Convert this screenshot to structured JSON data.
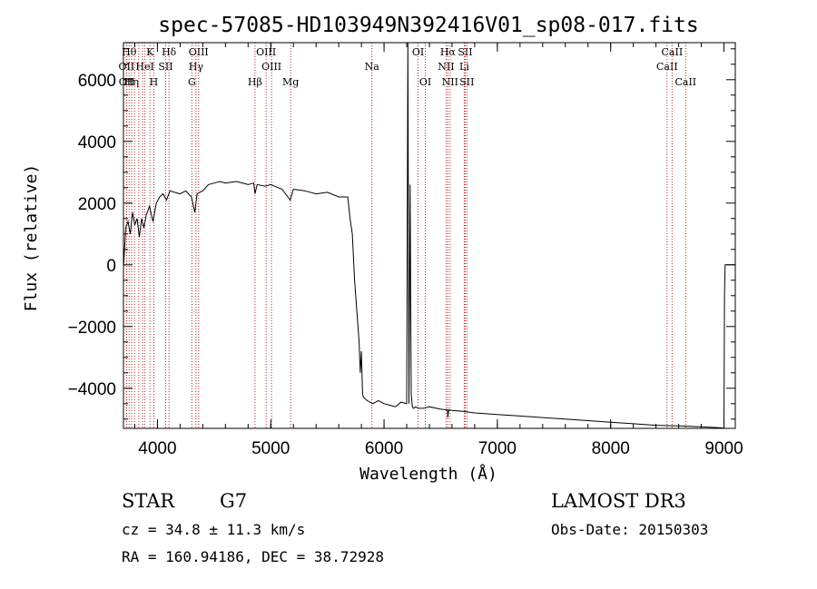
{
  "chart_data": {
    "type": "line",
    "title": "spec-57085-HD103949N392416V01_sp08-017.fits",
    "xlabel": "Wavelength (Å)",
    "ylabel": "Flux (relative)",
    "xlim": [
      3700,
      9100
    ],
    "ylim": [
      -5300,
      7200
    ],
    "x_ticks": [
      4000,
      5000,
      6000,
      7000,
      8000,
      9000
    ],
    "x_tick_labels": [
      "4000",
      "5000",
      "6000",
      "7000",
      "8000",
      "9000"
    ],
    "y_ticks": [
      -4000,
      -2000,
      0,
      2000,
      4000,
      6000
    ],
    "y_tick_labels": [
      "−4000",
      "−2000",
      "0",
      "2000",
      "4000",
      "6000"
    ],
    "series": [
      {
        "name": "flux",
        "x": [
          3700,
          3720,
          3740,
          3760,
          3780,
          3800,
          3820,
          3840,
          3860,
          3880,
          3900,
          3930,
          3960,
          3990,
          4020,
          4050,
          4080,
          4110,
          4150,
          4200,
          4250,
          4300,
          4330,
          4350,
          4400,
          4450,
          4500,
          4550,
          4600,
          4700,
          4800,
          4850,
          4861,
          4880,
          4950,
          5000,
          5100,
          5172,
          5200,
          5300,
          5400,
          5500,
          5600,
          5680,
          5700,
          5720,
          5740,
          5760,
          5780,
          5790,
          5800,
          5810,
          5820,
          5850,
          5900,
          5950,
          6000,
          6050,
          6100,
          6150,
          6200,
          6210,
          6220,
          6230,
          6240,
          6250,
          6260,
          6280,
          6300,
          6350,
          6400,
          6500,
          6560,
          6563,
          6570,
          6600,
          6700,
          6800,
          7000,
          7200,
          7400,
          7600,
          7800,
          8000,
          8200,
          8400,
          8600,
          8800,
          8950,
          9000,
          9005,
          9010,
          9100
        ],
        "y": [
          -100,
          1200,
          1400,
          1000,
          1700,
          1300,
          1500,
          900,
          1500,
          1200,
          1600,
          1900,
          1400,
          2000,
          2200,
          2300,
          2100,
          2400,
          2350,
          2300,
          2400,
          2200,
          1700,
          2300,
          2400,
          2600,
          2650,
          2700,
          2650,
          2700,
          2600,
          2650,
          2300,
          2600,
          2550,
          2600,
          2450,
          2100,
          2450,
          2400,
          2300,
          2350,
          2200,
          2200,
          1500,
          1000,
          -500,
          -1500,
          -2500,
          -3500,
          -2800,
          -4200,
          -4300,
          -4400,
          -4500,
          -4400,
          -4500,
          -4550,
          -4600,
          -4450,
          -4500,
          7200,
          -4500,
          2600,
          -4200,
          -4600,
          -4650,
          -4600,
          -4650,
          -4650,
          -4600,
          -4680,
          -4700,
          -4950,
          -4700,
          -4720,
          -4750,
          -4800,
          -4850,
          -4900,
          -4950,
          -5000,
          -5050,
          -5100,
          -5150,
          -5200,
          -5220,
          -5250,
          -5280,
          -5290,
          -1000,
          0,
          0
        ]
      }
    ],
    "line_markers": [
      {
        "x": 3750,
        "label": "Hθ",
        "row": 1
      },
      {
        "x": 3727,
        "label": "OII",
        "row": 2
      },
      {
        "x": 3729,
        "label": "OII",
        "row": 3
      },
      {
        "x": 3771,
        "label": "Hη",
        "row": 3
      },
      {
        "x": 3798,
        "label": "",
        "row": 0
      },
      {
        "x": 3835,
        "label": "",
        "row": 0
      },
      {
        "x": 3869,
        "label": "",
        "row": 0
      },
      {
        "x": 3889,
        "label": "HeI",
        "row": 2
      },
      {
        "x": 3934,
        "label": "K",
        "row": 1
      },
      {
        "x": 3968,
        "label": "H",
        "row": 3
      },
      {
        "x": 4072,
        "label": "SII",
        "row": 2
      },
      {
        "x": 4102,
        "label": "Hδ",
        "row": 1
      },
      {
        "x": 4304,
        "label": "G",
        "row": 3
      },
      {
        "x": 4340,
        "label": "Hγ",
        "row": 2
      },
      {
        "x": 4363,
        "label": "OIII",
        "row": 1
      },
      {
        "x": 4861,
        "label": "Hβ",
        "row": 3
      },
      {
        "x": 4959,
        "label": "OIII",
        "row": 1
      },
      {
        "x": 5007,
        "label": "OIII",
        "row": 2
      },
      {
        "x": 5175,
        "label": "Mg",
        "row": 3
      },
      {
        "x": 5893,
        "label": "Na",
        "row": 2
      },
      {
        "x": 6300,
        "label": "OI",
        "row": 1
      },
      {
        "x": 6364,
        "label": "OI",
        "row": 3
      },
      {
        "x": 6548,
        "label": "NII",
        "row": 2
      },
      {
        "x": 6563,
        "label": "Hα",
        "row": 1
      },
      {
        "x": 6583,
        "label": "NII",
        "row": 3
      },
      {
        "x": 6708,
        "label": "Li",
        "row": 2
      },
      {
        "x": 6716,
        "label": "SII",
        "row": 1
      },
      {
        "x": 6731,
        "label": "SII",
        "row": 3
      },
      {
        "x": 8498,
        "label": "CaII",
        "row": 2
      },
      {
        "x": 8542,
        "label": "CaII",
        "row": 1
      },
      {
        "x": 8662,
        "label": "CaII",
        "row": 3
      }
    ]
  },
  "info": {
    "object_type": "STAR",
    "subclass": "G7",
    "survey": "LAMOST DR3",
    "cz": "cz = 34.8 ± 11.3 km/s",
    "obs_date": "Obs-Date: 20150303",
    "coords": "RA = 160.94186, DEC =  38.72928"
  },
  "colors": {
    "axis": "#000000",
    "flux": "#000000",
    "marker": "#b22222"
  }
}
